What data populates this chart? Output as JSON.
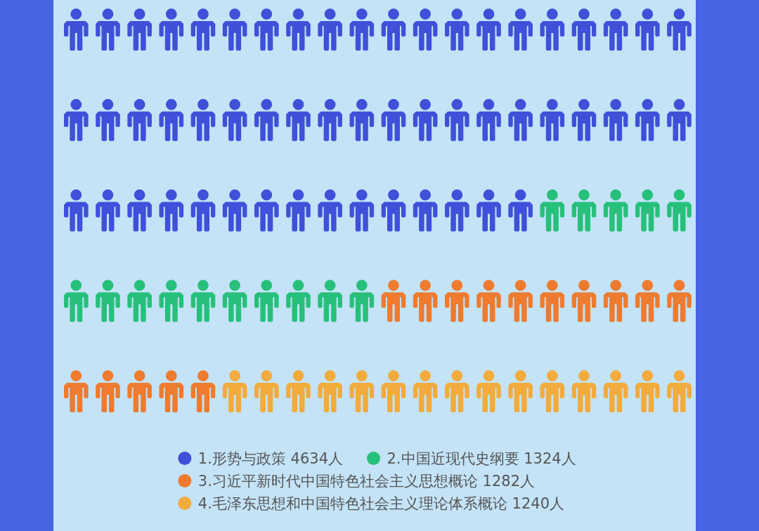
{
  "chart_data": {
    "type": "other",
    "categories": [
      "1.形势与政策",
      "2.中国近现代史纲要",
      "3.习近平新时代中国特色社会主义思想概论",
      "4.毛泽东思想和中国特色社会主义理论体系概论"
    ],
    "values": [
      4634,
      1324,
      1282,
      1240
    ],
    "value_labels": [
      "4634人",
      "1324人",
      "1282人",
      "1240人"
    ],
    "colors": [
      "#3f50d9",
      "#27c07b",
      "#ee7b2f",
      "#f2ab3c"
    ]
  }
}
